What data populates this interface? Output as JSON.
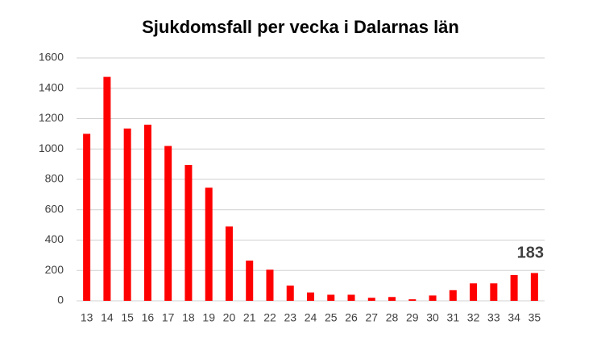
{
  "chart_data": {
    "type": "bar",
    "title": "Sjukdomsfall per vecka i Dalarnas län",
    "categories": [
      "13",
      "14",
      "15",
      "16",
      "17",
      "18",
      "19",
      "20",
      "21",
      "22",
      "23",
      "24",
      "25",
      "26",
      "27",
      "28",
      "29",
      "30",
      "31",
      "32",
      "33",
      "34",
      "35"
    ],
    "values": [
      1100,
      1475,
      1135,
      1160,
      1020,
      895,
      745,
      490,
      265,
      205,
      100,
      55,
      40,
      40,
      20,
      25,
      10,
      35,
      70,
      115,
      115,
      170,
      183
    ],
    "color": "#ff0000",
    "ylim": [
      0,
      1600
    ],
    "yticks": [
      0,
      200,
      400,
      600,
      800,
      1000,
      1200,
      1400,
      1600
    ],
    "grid": true,
    "data_labels": "last"
  }
}
